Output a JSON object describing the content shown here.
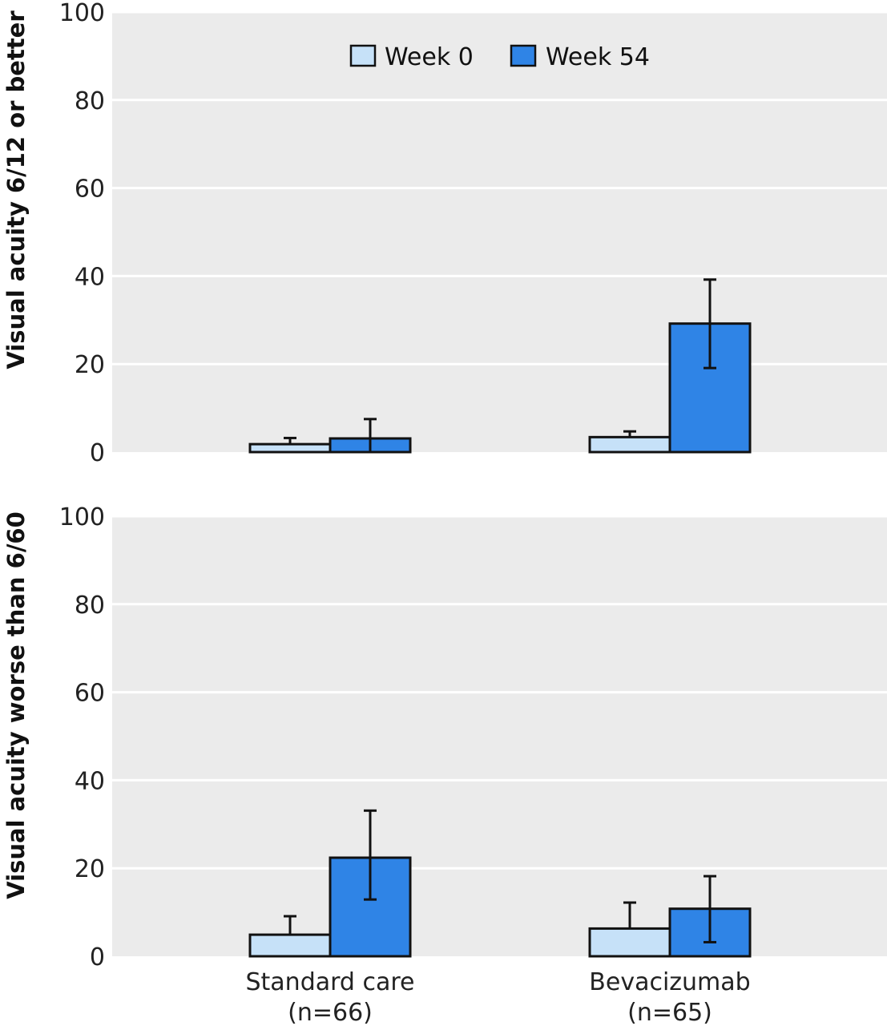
{
  "colors": {
    "panel_background": "#ebebeb",
    "gridline": "#ffffff",
    "week0_fill": "#c6e1f8",
    "week54_fill": "#2f84e6",
    "bar_stroke": "#111111"
  },
  "legend": {
    "placement": "top-center",
    "items": [
      "Week 0",
      "Week 54"
    ]
  },
  "categories": [
    {
      "name": "Standard care",
      "n": "(n=66)"
    },
    {
      "name": "Bevacizumab",
      "n": "(n=65)"
    }
  ],
  "chart_data": [
    {
      "type": "bar",
      "ylabel": "Visual acuity 6/12 or better",
      "ylim": [
        0,
        100
      ],
      "yticks": [
        "0",
        "20",
        "40",
        "60",
        "80",
        "100"
      ],
      "grid": true,
      "categories": [
        "Standard care",
        "Bevacizumab"
      ],
      "series": [
        {
          "name": "Week 0",
          "values": [
            1.8,
            3.4
          ],
          "error_upper": [
            3.2,
            4.7
          ]
        },
        {
          "name": "Week 54",
          "values": [
            3.1,
            29.2
          ],
          "error_lower": [
            0,
            19.1
          ],
          "error_upper": [
            7.5,
            39.2
          ]
        }
      ]
    },
    {
      "type": "bar",
      "ylabel": "Visual acuity worse than 6/60",
      "ylim": [
        0,
        100
      ],
      "yticks": [
        "0",
        "20",
        "40",
        "60",
        "80",
        "100"
      ],
      "grid": true,
      "categories": [
        "Standard care",
        "Bevacizumab"
      ],
      "series": [
        {
          "name": "Week 0",
          "values": [
            4.9,
            6.3
          ],
          "error_upper": [
            9.1,
            12.2
          ]
        },
        {
          "name": "Week 54",
          "values": [
            22.4,
            10.8
          ],
          "error_lower": [
            12.9,
            3.2
          ],
          "error_upper": [
            33.1,
            18.2
          ]
        }
      ]
    }
  ]
}
